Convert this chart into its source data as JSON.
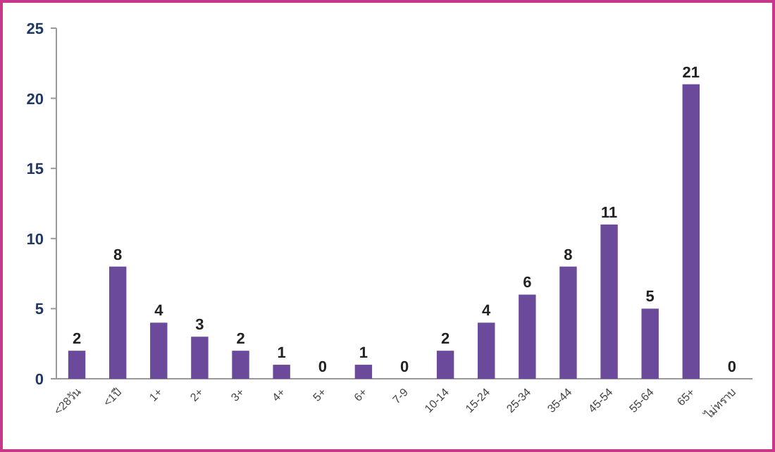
{
  "chart_data": {
    "type": "bar",
    "categories": [
      "<28วัน",
      "<1ปี",
      "1+",
      "2+",
      "3+",
      "4+",
      "5+",
      "6+",
      "7-9",
      "10-14",
      "15-24",
      "25-34",
      "35-44",
      "45-54",
      "55-64",
      "65+",
      "ไม่ทราบ"
    ],
    "values": [
      2,
      8,
      4,
      3,
      2,
      1,
      0,
      1,
      0,
      2,
      4,
      6,
      8,
      11,
      5,
      21,
      0
    ],
    "color": "#6b4a9b",
    "ylim": [
      0,
      25
    ],
    "yticks": [
      0,
      5,
      10,
      15,
      20,
      25
    ],
    "data_labels": true
  }
}
